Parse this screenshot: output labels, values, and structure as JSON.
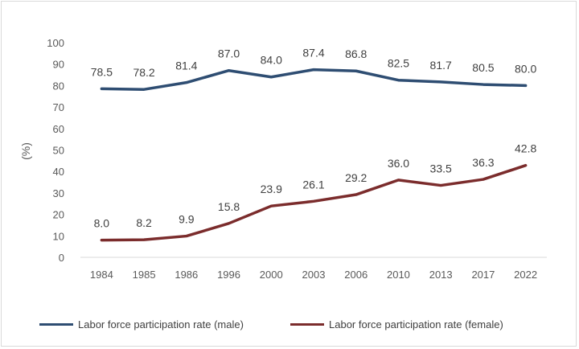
{
  "chart_data": {
    "type": "line",
    "categories": [
      "1984",
      "1985",
      "1986",
      "1996",
      "2000",
      "2003",
      "2006",
      "2010",
      "2013",
      "2017",
      "2022"
    ],
    "series": [
      {
        "name": "Labor force participation rate (male)",
        "color": "#2e4d72",
        "values": [
          78.5,
          78.2,
          81.4,
          87.0,
          84.0,
          87.4,
          86.8,
          82.5,
          81.7,
          80.5,
          80.0
        ]
      },
      {
        "name": "Labor force participation rate (female)",
        "color": "#7b2c2c",
        "values": [
          8.0,
          8.2,
          9.9,
          15.8,
          23.9,
          26.1,
          29.2,
          36.0,
          33.5,
          36.3,
          42.8
        ]
      }
    ],
    "ylabel": "(%)",
    "ylim": [
      0,
      100
    ],
    "yticks": [
      0,
      10,
      20,
      30,
      40,
      50,
      60,
      70,
      80,
      90,
      100
    ],
    "grid": false,
    "legend": "bottom",
    "data_labels": true
  }
}
